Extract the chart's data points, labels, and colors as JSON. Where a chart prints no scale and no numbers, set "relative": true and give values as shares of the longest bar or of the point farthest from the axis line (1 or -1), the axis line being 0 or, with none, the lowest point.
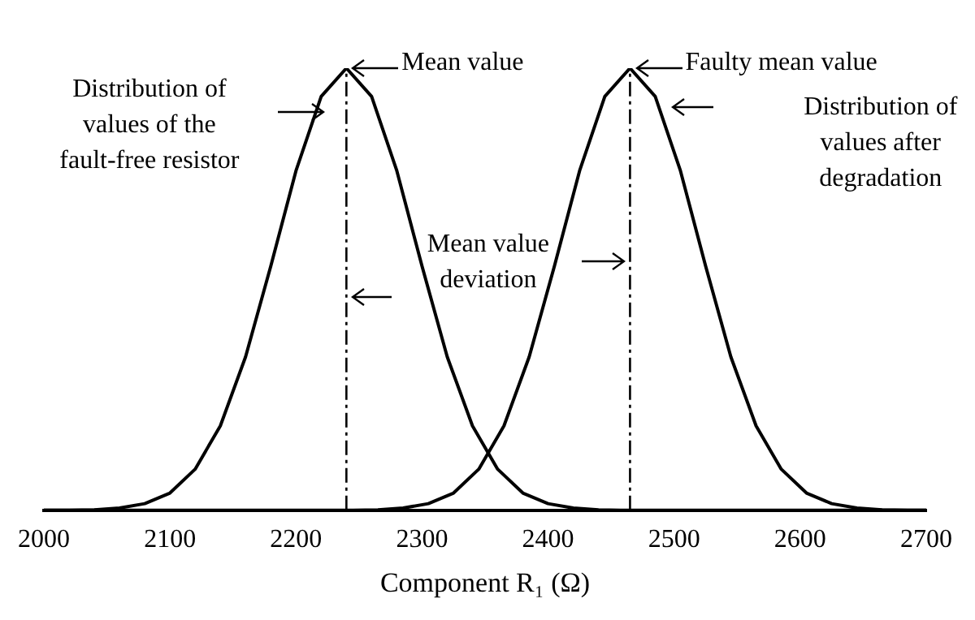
{
  "chart_data": {
    "type": "line",
    "relative": true,
    "xlabel": "Component R₁ (Ω)",
    "xlim": [
      2000,
      2700
    ],
    "xticks": [
      2000,
      2100,
      2200,
      2300,
      2400,
      2500,
      2600,
      2700
    ],
    "grid": false,
    "legend": false,
    "marker": "none",
    "line_style": "solid",
    "series": [
      {
        "color": "#000000",
        "x": [
          2000,
          2020,
          2040,
          2060,
          2080,
          2100,
          2120,
          2140,
          2160,
          2180,
          2200,
          2220,
          2240,
          2260,
          2280,
          2300,
          2320,
          2340,
          2360,
          2380,
          2400,
          2420,
          2440,
          2460,
          2700
        ],
        "values": [
          0,
          0,
          0.001,
          0.005,
          0.015,
          0.039,
          0.093,
          0.191,
          0.347,
          0.552,
          0.768,
          0.936,
          1,
          0.936,
          0.768,
          0.552,
          0.347,
          0.191,
          0.093,
          0.039,
          0.015,
          0.005,
          0.001,
          0,
          0
        ]
      },
      {
        "color": "#000000",
        "x": [
          2000,
          2245,
          2265,
          2285,
          2305,
          2325,
          2345,
          2365,
          2385,
          2405,
          2425,
          2445,
          2465,
          2485,
          2505,
          2525,
          2545,
          2565,
          2585,
          2605,
          2625,
          2645,
          2665,
          2685,
          2700
        ],
        "values": [
          0,
          0,
          0.001,
          0.005,
          0.015,
          0.039,
          0.093,
          0.191,
          0.347,
          0.552,
          0.768,
          0.936,
          1,
          0.936,
          0.768,
          0.552,
          0.347,
          0.191,
          0.093,
          0.039,
          0.015,
          0.005,
          0.001,
          0,
          0
        ]
      }
    ],
    "ref_lines": [
      {
        "axis": "x",
        "value": 2240,
        "color": "#000000",
        "line_style": "dashed"
      },
      {
        "axis": "x",
        "value": 2465,
        "color": "#000000",
        "line_style": "dashed"
      }
    ],
    "annotations": [
      "Distribution of values of the fault-free resistor",
      {
        "text": "Mean value",
        "x": 2240,
        "y": 1
      },
      "Mean value deviation",
      {
        "text": "Faulty mean value",
        "x": 2465,
        "y": 1
      },
      "Distribution of values after degradation"
    ]
  }
}
